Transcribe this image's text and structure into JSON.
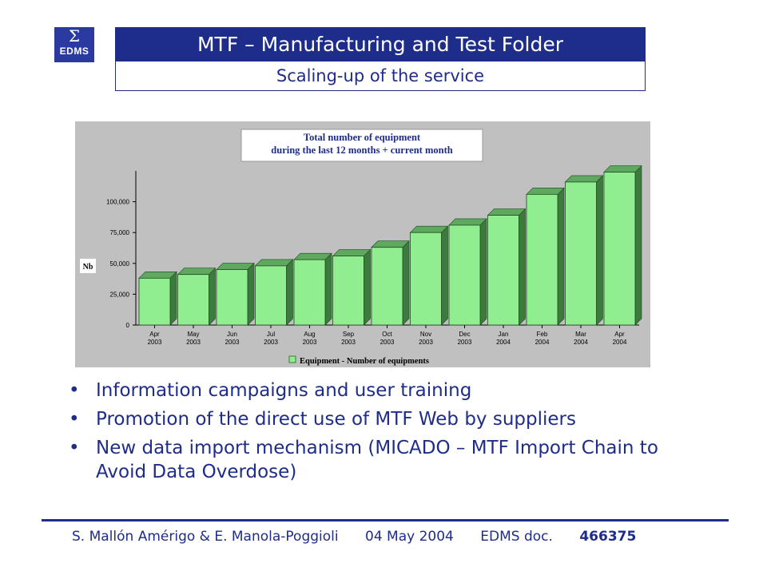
{
  "logo": {
    "text": "EDMS"
  },
  "header": {
    "title": "MTF – Manufacturing and Test Folder",
    "subtitle": "Scaling-up of the service"
  },
  "chart_data": {
    "type": "bar",
    "title": "Total number of equipment",
    "subtitle": "during the last 12 months + current month",
    "ylabel": "Nb",
    "legend": "Equipment - Number of equipments",
    "legend_position": "bottom",
    "categories": [
      "Apr\n2003",
      "May\n2003",
      "Jun\n2003",
      "Jul\n2003",
      "Aug\n2003",
      "Sep\n2003",
      "Oct\n2003",
      "Nov\n2003",
      "Dec\n2003",
      "Jan\n2004",
      "Feb\n2004",
      "Mar\n2004",
      "Apr\n2004"
    ],
    "series": [
      {
        "name": "Equipment - Number of equipments",
        "values": [
          38000,
          41000,
          45000,
          48000,
          53000,
          56000,
          63000,
          75000,
          81000,
          89000,
          106000,
          116000,
          124000
        ]
      }
    ],
    "yticks": [
      "0",
      "25,000",
      "50,000",
      "75,000",
      "100,000"
    ],
    "ylim": [
      0,
      125000
    ],
    "colors": {
      "bar_front": "#90ee90",
      "bar_top": "#5fa85f",
      "bar_side": "#3d7a3d"
    }
  },
  "bullets": [
    "Information campaigns and user training",
    "Promotion of the direct use of MTF Web by suppliers",
    "New data import mechanism (MICADO – MTF Import Chain to Avoid Data Overdose)"
  ],
  "footer": {
    "authors": "S. Mallón Amérigo & E. Manola-Poggioli",
    "date": "04 May 2004",
    "doc_label": "EDMS doc.",
    "doc_number": "466375"
  }
}
